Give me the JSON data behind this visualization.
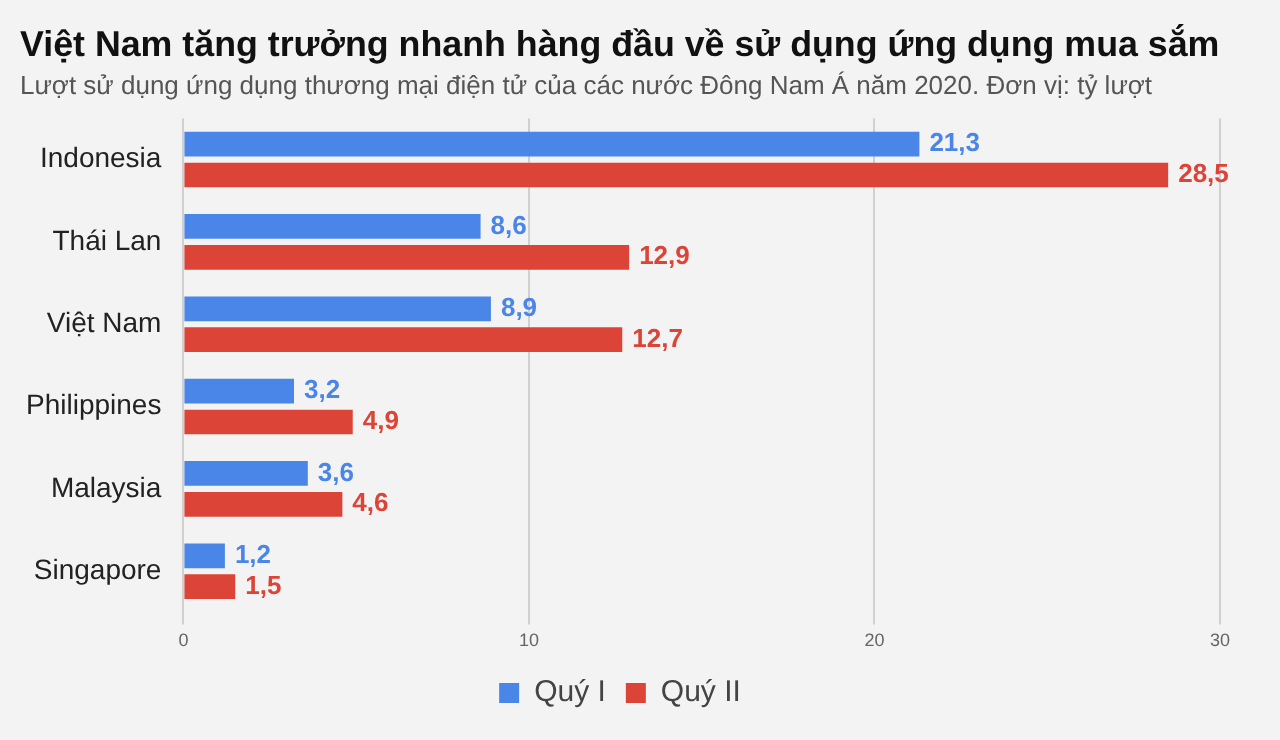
{
  "chart_data": {
    "type": "bar",
    "orientation": "horizontal",
    "title": "Việt Nam tăng trưởng nhanh hàng đầu về sử dụng ứng dụng mua sắm",
    "subtitle": "Lượt sử dụng ứng dụng thương mại điện tử của các nước Đông Nam Á năm 2020. Đơn vị: tỷ lượt",
    "categories": [
      "Indonesia",
      "Thái Lan",
      "Việt Nam",
      "Philippines",
      "Malaysia",
      "Singapore"
    ],
    "series": [
      {
        "name": "Quý I",
        "color": "#4a86e8",
        "values": [
          21.3,
          8.6,
          8.9,
          3.2,
          3.6,
          1.2
        ],
        "value_labels": [
          "21,3",
          "8,6",
          "8,9",
          "3,2",
          "3,6",
          "1,2"
        ]
      },
      {
        "name": "Quý II",
        "color": "#db4437",
        "values": [
          28.5,
          12.9,
          12.7,
          4.9,
          4.6,
          1.5
        ],
        "value_labels": [
          "28,5",
          "12,9",
          "12,7",
          "4,9",
          "4,6",
          "1,5"
        ]
      }
    ],
    "xlim": [
      0,
      30
    ],
    "xticks": [
      0,
      10,
      20,
      30
    ],
    "grid": "x",
    "legend": "bottom"
  }
}
